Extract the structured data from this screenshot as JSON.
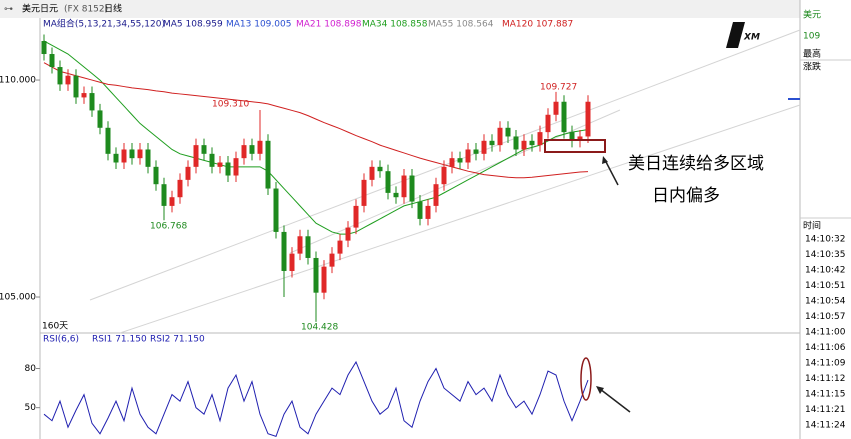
{
  "chart_data": {
    "type": "candlestick",
    "header": {
      "symbol": "美元日元",
      "code": "(FX 8152)",
      "period": "日线"
    },
    "legend": [
      {
        "text": "MA组合(5,13,21,34,55,120)",
        "color": "#1a1a8c"
      },
      {
        "text": "MA5 108.959",
        "color": "#1a1a8c"
      },
      {
        "text": "MA13 109.005",
        "color": "#2a4fd0"
      },
      {
        "text": "MA21 108.898",
        "color": "#d020d0"
      },
      {
        "text": "MA34 108.858",
        "color": "#1f9e1f"
      },
      {
        "text": "MA55 108.564",
        "color": "#8a8a8a"
      },
      {
        "text": "MA120 107.887",
        "color": "#d02020"
      }
    ],
    "up_color": "#e02828",
    "down_color": "#1e8a1e",
    "ylim": [
      104.24,
      111.43
    ],
    "yticks": [
      {
        "value": 105,
        "label": "105.000"
      },
      {
        "value": 110,
        "label": "110.000"
      }
    ],
    "ohlc": [
      [
        110.9,
        111.05,
        110.45,
        110.6
      ],
      [
        110.6,
        110.75,
        110.15,
        110.3
      ],
      [
        110.3,
        110.45,
        109.75,
        109.9
      ],
      [
        109.9,
        110.25,
        109.75,
        110.1
      ],
      [
        110.1,
        110.25,
        109.45,
        109.6
      ],
      [
        109.6,
        109.85,
        109.45,
        109.7
      ],
      [
        109.7,
        109.85,
        109.15,
        109.3
      ],
      [
        109.3,
        109.45,
        108.75,
        108.9
      ],
      [
        108.9,
        109.05,
        108.15,
        108.3
      ],
      [
        108.3,
        108.45,
        107.95,
        108.1
      ],
      [
        108.1,
        108.55,
        107.95,
        108.4
      ],
      [
        108.4,
        108.55,
        108.05,
        108.2
      ],
      [
        108.2,
        108.55,
        108.05,
        108.4
      ],
      [
        108.4,
        108.55,
        107.85,
        108.0
      ],
      [
        108.0,
        108.15,
        107.45,
        107.6
      ],
      [
        107.6,
        107.75,
        106.768,
        107.1
      ],
      [
        107.1,
        107.45,
        106.95,
        107.3
      ],
      [
        107.3,
        107.85,
        107.15,
        107.7
      ],
      [
        107.7,
        108.15,
        107.55,
        108.0
      ],
      [
        108.0,
        108.65,
        107.85,
        108.5
      ],
      [
        108.5,
        108.65,
        108.15,
        108.3
      ],
      [
        108.3,
        108.45,
        107.85,
        108.0
      ],
      [
        108.0,
        108.25,
        107.85,
        108.1
      ],
      [
        108.1,
        108.25,
        107.65,
        107.8
      ],
      [
        107.8,
        108.35,
        107.65,
        108.2
      ],
      [
        108.2,
        108.65,
        108.05,
        108.5
      ],
      [
        108.5,
        108.65,
        108.15,
        108.3
      ],
      [
        108.3,
        109.31,
        108.15,
        108.6
      ],
      [
        108.6,
        108.75,
        107.35,
        107.5
      ],
      [
        107.5,
        107.65,
        106.35,
        106.5
      ],
      [
        106.5,
        106.65,
        105.0,
        105.6
      ],
      [
        105.6,
        106.15,
        105.45,
        106.0
      ],
      [
        106.0,
        106.55,
        105.85,
        106.4
      ],
      [
        106.4,
        106.55,
        105.75,
        105.9
      ],
      [
        105.9,
        106.05,
        104.428,
        105.1
      ],
      [
        105.1,
        105.85,
        104.95,
        105.7
      ],
      [
        105.7,
        106.15,
        105.55,
        106.0
      ],
      [
        106.0,
        106.45,
        105.85,
        106.3
      ],
      [
        106.3,
        106.75,
        106.15,
        106.6
      ],
      [
        106.6,
        107.25,
        106.45,
        107.1
      ],
      [
        107.1,
        107.85,
        106.95,
        107.7
      ],
      [
        107.7,
        108.15,
        107.55,
        108.0
      ],
      [
        108.0,
        108.15,
        107.75,
        107.9
      ],
      [
        107.9,
        108.05,
        107.25,
        107.4
      ],
      [
        107.4,
        107.55,
        107.15,
        107.3
      ],
      [
        107.3,
        107.95,
        107.15,
        107.8
      ],
      [
        107.8,
        107.95,
        107.05,
        107.2
      ],
      [
        107.2,
        107.35,
        106.65,
        106.8
      ],
      [
        106.8,
        107.25,
        106.65,
        107.1
      ],
      [
        107.1,
        107.75,
        106.95,
        107.6
      ],
      [
        107.6,
        108.15,
        107.45,
        108.0
      ],
      [
        108.0,
        108.35,
        107.85,
        108.2
      ],
      [
        108.2,
        108.35,
        107.95,
        108.1
      ],
      [
        108.1,
        108.55,
        107.95,
        108.4
      ],
      [
        108.4,
        108.55,
        108.15,
        108.3
      ],
      [
        108.3,
        108.75,
        108.15,
        108.6
      ],
      [
        108.6,
        108.75,
        108.35,
        108.5
      ],
      [
        108.5,
        109.05,
        108.35,
        108.9
      ],
      [
        108.9,
        109.05,
        108.55,
        108.7
      ],
      [
        108.7,
        108.85,
        108.25,
        108.4
      ],
      [
        108.4,
        108.75,
        108.25,
        108.6
      ],
      [
        108.6,
        108.75,
        108.35,
        108.5
      ],
      [
        108.5,
        108.95,
        108.35,
        108.8
      ],
      [
        108.8,
        109.35,
        108.65,
        109.2
      ],
      [
        109.2,
        109.727,
        109.05,
        109.5
      ],
      [
        109.5,
        109.65,
        108.65,
        108.8
      ],
      [
        108.8,
        108.95,
        108.45,
        108.6
      ],
      [
        108.6,
        108.85,
        108.45,
        108.7
      ],
      [
        108.7,
        109.65,
        108.55,
        109.5
      ]
    ],
    "lines": [
      {
        "color": "#1f9e1f",
        "values": [
          110.9,
          110.8,
          110.7,
          110.6,
          110.45,
          110.3,
          110.15,
          110.0,
          109.8,
          109.6,
          109.4,
          109.2,
          109.0,
          108.85,
          108.7,
          108.55,
          108.4,
          108.3,
          108.25,
          108.2,
          108.15,
          108.1,
          108.05,
          108.0,
          108.0,
          108.0,
          108.0,
          108.0,
          107.9,
          107.7,
          107.5,
          107.3,
          107.1,
          106.9,
          106.7,
          106.6,
          106.5,
          106.45,
          106.45,
          106.5,
          106.6,
          106.7,
          106.8,
          106.9,
          107.0,
          107.1,
          107.15,
          107.2,
          107.25,
          107.3,
          107.4,
          107.5,
          107.6,
          107.7,
          107.8,
          107.9,
          108.0,
          108.1,
          108.2,
          108.3,
          108.4,
          108.45,
          108.5,
          108.6,
          108.7,
          108.75,
          108.8,
          108.83,
          108.86
        ]
      },
      {
        "color": "#d02020",
        "values": [
          110.4,
          110.3,
          110.2,
          110.15,
          110.1,
          110.05,
          110.0,
          109.95,
          109.9,
          109.88,
          109.85,
          109.82,
          109.8,
          109.78,
          109.75,
          109.73,
          109.7,
          109.68,
          109.66,
          109.64,
          109.62,
          109.6,
          109.58,
          109.56,
          109.54,
          109.52,
          109.5,
          109.48,
          109.45,
          109.4,
          109.35,
          109.3,
          109.25,
          109.18,
          109.1,
          109.02,
          108.95,
          108.88,
          108.8,
          108.72,
          108.65,
          108.58,
          108.5,
          108.44,
          108.38,
          108.32,
          108.26,
          108.2,
          108.15,
          108.1,
          108.05,
          108.0,
          107.95,
          107.9,
          107.86,
          107.82,
          107.8,
          107.78,
          107.76,
          107.75,
          107.75,
          107.76,
          107.78,
          107.8,
          107.82,
          107.84,
          107.86,
          107.88,
          107.89
        ]
      }
    ],
    "annotations": [
      "109.310",
      "106.768",
      "104.428",
      "109.727"
    ],
    "span_label": "160天",
    "callout": [
      "美日连续给多区域",
      "日内偏多"
    ],
    "rsi": {
      "title": "RSI(6,6)",
      "labels": [
        "RSI1 71.150",
        "RSI2 71.150"
      ],
      "color": "#2020b0",
      "ylim": [
        26,
        98
      ],
      "yticks": [
        50,
        80
      ],
      "values": [
        45,
        40,
        55,
        35,
        48,
        60,
        38,
        30,
        42,
        55,
        40,
        65,
        45,
        35,
        30,
        45,
        60,
        55,
        70,
        50,
        45,
        60,
        40,
        65,
        75,
        55,
        70,
        45,
        30,
        28,
        45,
        55,
        35,
        30,
        45,
        55,
        65,
        60,
        75,
        85,
        70,
        55,
        45,
        50,
        65,
        40,
        35,
        55,
        70,
        80,
        65,
        60,
        55,
        70,
        60,
        65,
        55,
        75,
        60,
        50,
        55,
        45,
        60,
        78,
        75,
        55,
        40,
        55,
        71.15
      ]
    },
    "side": {
      "name": "美元",
      "price": "109",
      "high": "最高",
      "change": "涨跌",
      "time": "时间",
      "times": [
        "14:10:32",
        "14:10:35",
        "14:10:42",
        "14:10:51",
        "14:10:54",
        "14:10:57",
        "14:11:00",
        "14:11:06",
        "14:11:09",
        "14:11:12",
        "14:11:15",
        "14:11:21",
        "14:11:24"
      ]
    }
  }
}
